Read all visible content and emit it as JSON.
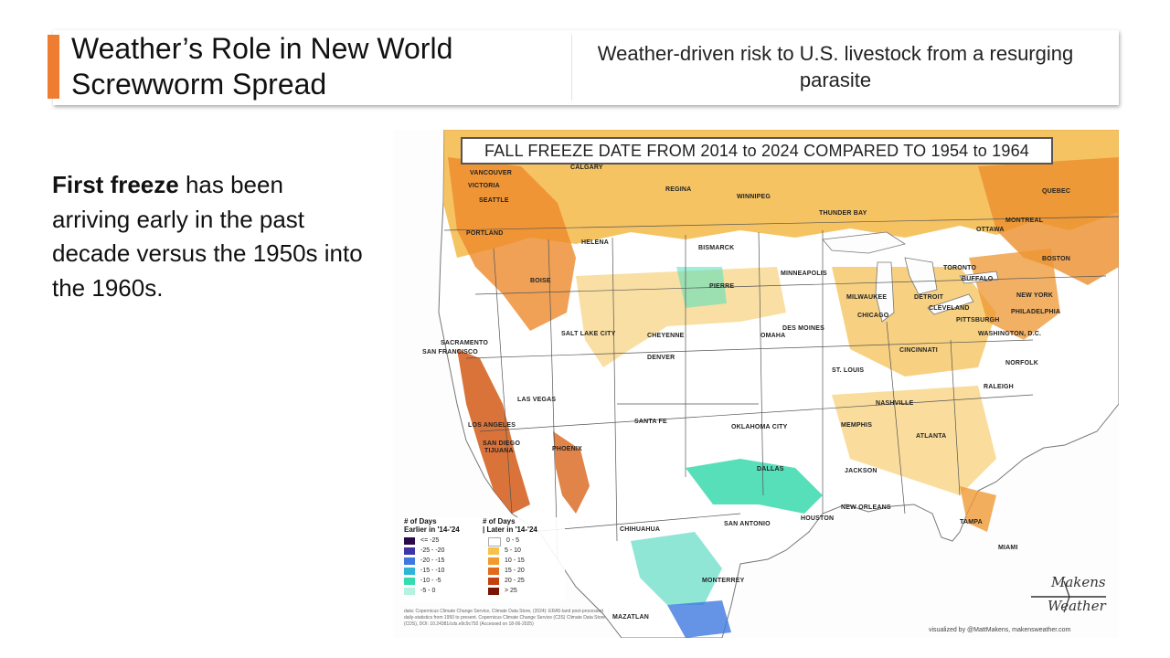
{
  "slide": {
    "title_line1": "Weather’s Role in New World",
    "title_line2": "Screwworm Spread",
    "subtitle": "Weather-driven risk to U.S. livestock from a resurging parasite",
    "body_bold": "First freeze",
    "body_rest": " has been arriving early in the past decade versus the 1950s into the 1960s.",
    "accent_color": "#ee7d31"
  },
  "map": {
    "title": "FALL FREEZE DATE FROM 2014 to 2024 COMPARED TO 1954 to 1964",
    "cities": {
      "vancouver": "VANCOUVER",
      "victoria": "VICTORIA",
      "seattle": "SEATTLE",
      "portland": "PORTLAND",
      "calgary": "CALGARY",
      "regina": "REGINA",
      "winnipeg": "WINNIPEG",
      "thunder_bay": "THUNDER BAY",
      "quebec": "QUEBEC",
      "montreal": "MONTREAL",
      "ottawa": "OTTAWA",
      "helena": "HELENA",
      "bismarck": "BISMARCK",
      "boise": "BOISE",
      "pierre": "PIERRE",
      "minneapolis": "MINNEAPOLIS",
      "toronto": "TORONTO",
      "buffalo": "BUFFALO",
      "boston": "BOSTON",
      "milwaukee": "MILWAUKEE",
      "detroit": "DETROIT",
      "cleveland": "CLEVELAND",
      "new_york": "NEW YORK",
      "chicago": "CHICAGO",
      "pittsburgh": "PITTSBURGH",
      "philadelphia": "PHILADELPHIA",
      "des_moines": "DES MOINES",
      "omaha": "OMAHA",
      "sacramento": "SACRAMENTO",
      "san_francisco": "SAN FRANCISCO",
      "salt_lake_city": "SALT LAKE CITY",
      "cheyenne": "CHEYENNE",
      "washington": "WASHINGTON, D.C.",
      "cincinnati": "CINCINNATI",
      "denver": "DENVER",
      "st_louis": "ST. LOUIS",
      "norfolk": "NORFOLK",
      "las_vegas": "LAS VEGAS",
      "raleigh": "RALEIGH",
      "nashville": "NASHVILLE",
      "los_angeles": "LOS ANGELES",
      "santa_fe": "SANTA FE",
      "oklahoma_city": "OKLAHOMA CITY",
      "memphis": "MEMPHIS",
      "atlanta": "ATLANTA",
      "san_diego": "SAN DIEGO",
      "tijuana": "TIJUANA",
      "phoenix": "PHOENIX",
      "dallas": "DALLAS",
      "jackson": "JACKSON",
      "new_orleans": "NEW ORLEANS",
      "chihuahua": "CHIHUAHUA",
      "san_antonio": "SAN ANTONIO",
      "houston": "HOUSTON",
      "tampa": "TAMPA",
      "miami": "MIAMI",
      "monterrey": "MONTERREY",
      "mazatlan": "MAZATLAN"
    },
    "legend": {
      "earlier_header_1": "# of Days",
      "earlier_header_2": "Earlier in '14-'24",
      "later_header_1": "# of Days",
      "later_header_2": "| Later in '14-'24",
      "earlier": [
        {
          "label": "<= -25",
          "color": "#2a0a4a"
        },
        {
          "label": "-25 - -20",
          "color": "#3e35a8"
        },
        {
          "label": "-20 - -15",
          "color": "#3f78e0"
        },
        {
          "label": "-15 - -10",
          "color": "#2fb6d6"
        },
        {
          "label": "-10 - -5",
          "color": "#35dcb0"
        },
        {
          "label": "-5 - 0",
          "color": "#b6f2df"
        }
      ],
      "later": [
        {
          "label": "0 - 5",
          "color": "#ffffff"
        },
        {
          "label": "5 - 10",
          "color": "#f7c24c"
        },
        {
          "label": "10 - 15",
          "color": "#f29a2e"
        },
        {
          "label": "15 - 20",
          "color": "#e26a1c"
        },
        {
          "label": "20 - 25",
          "color": "#c3400f"
        },
        {
          "label": "> 25",
          "color": "#7a1406"
        }
      ]
    },
    "source": "data: Copernicus Climate Change Service, Climate Data Store, (2024): ERA5-land post-processed daily-statistics from 1950 to present. Copernicus Climate Change Service (C3S) Climate Data Store (CDS), DOI: 10.24381/cds.e9c9c792 (Accessed on 18-06-2025)",
    "logo_line1": "Makens",
    "logo_line2": "Weather",
    "credit": "visualized by @MattMakens, makensweather.com"
  }
}
